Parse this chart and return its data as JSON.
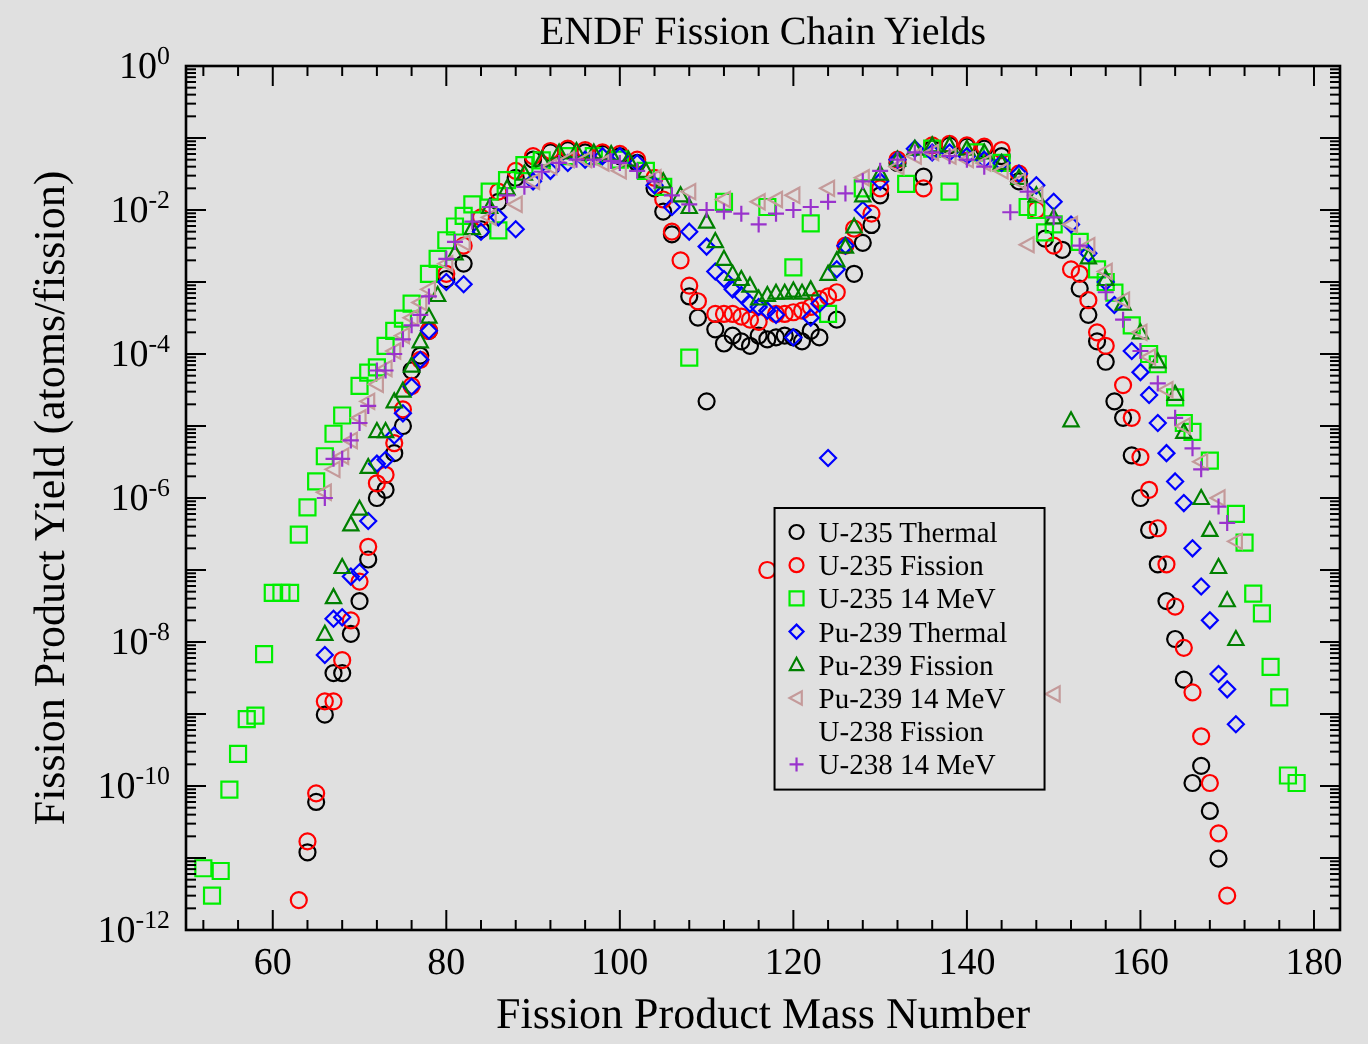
{
  "chart_data": {
    "type": "scatter",
    "title": "ENDF Fission Chain Yields",
    "xlabel": "Fission Product Mass Number",
    "ylabel": "Fission Product Yield (atoms/fission)",
    "log": "y",
    "legend": "bottom",
    "xlim": [
      50,
      183
    ],
    "ylim": [
      1e-12,
      1
    ],
    "xticks": [
      60,
      80,
      100,
      120,
      140,
      160,
      180
    ],
    "yticks": [
      {
        "value": 1e-12,
        "label": "10$^{-12}$"
      },
      {
        "value": 1e-11,
        "label": null
      },
      {
        "value": 1e-10,
        "label": "10$^{-10}$"
      },
      {
        "value": 1e-09,
        "label": null
      },
      {
        "value": 1e-08,
        "label": "10$^{-8}$"
      },
      {
        "value": 1e-07,
        "label": null
      },
      {
        "value": 1e-06,
        "label": "10$^{-6}$"
      },
      {
        "value": 1e-05,
        "label": null
      },
      {
        "value": 0.0001,
        "label": "10$^{-4}$"
      },
      {
        "value": 0.001,
        "label": null
      },
      {
        "value": 0.01,
        "label": "10$^{-2}$"
      },
      {
        "value": 0.1,
        "label": null
      },
      {
        "value": 1,
        "label": "10$^{0}$"
      }
    ],
    "series": [
      {
        "name": "U-235 Thermal",
        "color": "#000000",
        "marker": "circle",
        "x": [
          64,
          65,
          66,
          67,
          68,
          69,
          70,
          71,
          72,
          73,
          74,
          75,
          76,
          77,
          78,
          80,
          82,
          84,
          86,
          88,
          90,
          92,
          94,
          96,
          98,
          100,
          102,
          104,
          105,
          106,
          108,
          109,
          110,
          111,
          112,
          113,
          114,
          115,
          116,
          117,
          118,
          119,
          120,
          121,
          122,
          123,
          125,
          127,
          128,
          129,
          130,
          132,
          135,
          136,
          138,
          140,
          142,
          144,
          146,
          149,
          151,
          153,
          154,
          155,
          156,
          157,
          158,
          159,
          160,
          161,
          162,
          163,
          164,
          165,
          166,
          167,
          168,
          169
        ],
        "values": [
          1.2e-11,
          6e-11,
          9.8e-10,
          3.7e-09,
          3.7e-09,
          1.3e-08,
          3.7e-08,
          1.4e-07,
          1e-06,
          1.3e-06,
          4.2e-06,
          1e-05,
          5.9e-05,
          9.5e-05,
          0.00021,
          0.0011,
          0.0018,
          0.0054,
          0.013,
          0.028,
          0.05,
          0.063,
          0.068,
          0.063,
          0.06,
          0.056,
          0.045,
          0.02,
          0.0095,
          0.0046,
          0.00063,
          0.00032,
          2.2e-05,
          0.00022,
          0.00014,
          0.00018,
          0.00015,
          0.00013,
          0.00018,
          0.00016,
          0.00017,
          0.00018,
          0.00017,
          0.00015,
          0.00021,
          0.00017,
          0.0003,
          0.0013,
          0.0035,
          0.0062,
          0.016,
          0.045,
          0.029,
          0.071,
          0.079,
          0.076,
          0.071,
          0.056,
          0.025,
          0.004,
          0.0028,
          0.00081,
          0.00035,
          0.00015,
          7.8e-05,
          2.2e-05,
          1.3e-05,
          3.9e-06,
          1e-06,
          3.6e-07,
          1.2e-07,
          3.7e-08,
          1.1e-08,
          3e-09,
          1.1e-10,
          1.9e-10,
          4.5e-11,
          9.8e-12
        ]
      },
      {
        "name": "U-235 Fission",
        "color": "#ff0000",
        "marker": "circle",
        "x": [
          63,
          64,
          65,
          66,
          67,
          68,
          69,
          70,
          71,
          72,
          73,
          74,
          75,
          76,
          77,
          78,
          80,
          82,
          84,
          86,
          88,
          90,
          92,
          94,
          96,
          98,
          100,
          102,
          104,
          105,
          106,
          107,
          108,
          109,
          111,
          112,
          113,
          114,
          115,
          116,
          117,
          118,
          119,
          120,
          121,
          122,
          123,
          124,
          125,
          126,
          127,
          129,
          130,
          132,
          135,
          136,
          138,
          140,
          142,
          144,
          146,
          148,
          150,
          152,
          153,
          154,
          155,
          156,
          158,
          159,
          160,
          161,
          162,
          163,
          164,
          165,
          166,
          167,
          168,
          169,
          170
        ],
        "values": [
          2.6e-12,
          1.7e-11,
          7.9e-11,
          1.5e-09,
          1.5e-09,
          5.6e-09,
          2e-08,
          6.9e-08,
          2.1e-07,
          1.6e-06,
          2.1e-06,
          5.8e-06,
          1.7e-05,
          3.6e-05,
          8.3e-05,
          0.00021,
          0.0013,
          0.0032,
          0.0079,
          0.018,
          0.035,
          0.056,
          0.066,
          0.071,
          0.068,
          0.063,
          0.06,
          0.05,
          0.028,
          0.014,
          0.005,
          0.002,
          0.00089,
          0.00054,
          0.00036,
          0.00036,
          0.00036,
          0.00033,
          0.0003,
          0.00028,
          1e-07,
          0.00036,
          0.00036,
          0.00038,
          0.0004,
          0.00045,
          0.00058,
          0.00063,
          0.00072,
          0.0032,
          0.0055,
          0.0089,
          0.02,
          0.05,
          0.02,
          0.079,
          0.083,
          0.079,
          0.076,
          0.068,
          0.032,
          0.01,
          0.0032,
          0.0015,
          0.0013,
          0.00056,
          0.0002,
          0.00013,
          3.7e-05,
          1.3e-05,
          3.7e-06,
          1.3e-06,
          3.8e-07,
          1.2e-07,
          3.1e-08,
          8.3e-09,
          2e-09,
          4.9e-10,
          1.1e-10,
          2.2e-11,
          3e-12
        ]
      },
      {
        "name": "U-235 14 MeV",
        "color": "#00ee00",
        "marker": "square",
        "x": [
          52,
          53,
          54,
          55,
          56,
          57,
          58,
          59,
          60,
          61,
          62,
          63,
          64,
          65,
          66,
          67,
          68,
          70,
          71,
          72,
          73,
          74,
          75,
          76,
          78,
          79,
          80,
          81,
          82,
          83,
          85,
          86,
          87,
          89,
          91,
          94,
          97,
          100,
          103,
          105,
          108,
          112,
          117,
          120,
          122,
          124,
          128,
          133,
          136,
          138,
          141,
          144,
          147,
          148,
          149,
          150,
          153,
          155,
          156,
          157,
          159,
          161,
          162,
          164,
          165,
          166,
          168,
          171,
          172,
          173,
          174,
          175,
          176,
          177,
          178
        ],
        "values": [
          7.2e-12,
          3e-12,
          6.6e-12,
          8.9e-11,
          2.8e-10,
          8.5e-10,
          9.5e-10,
          6.8e-09,
          4.8e-08,
          4.8e-08,
          4.8e-08,
          3.1e-07,
          7.4e-07,
          1.7e-06,
          3.8e-06,
          7.8e-06,
          1.4e-05,
          3.6e-05,
          5.5e-05,
          6.5e-05,
          0.00013,
          0.00021,
          0.00031,
          0.0005,
          0.0013,
          0.0021,
          0.0038,
          0.0059,
          0.0083,
          0.012,
          0.018,
          0.0052,
          0.026,
          0.042,
          0.049,
          0.056,
          0.056,
          0.05,
          0.035,
          0.021,
          8.9e-05,
          0.013,
          0.011,
          0.0016,
          0.0065,
          0.00036,
          0.02,
          0.023,
          0.071,
          0.018,
          0.063,
          0.045,
          0.011,
          0.01,
          0.0049,
          0.0063,
          0.0036,
          0.0015,
          0.001,
          0.00071,
          0.00025,
          0.0001,
          7.2e-05,
          2.5e-05,
          1.1e-05,
          8.3e-06,
          3.3e-06,
          6e-07,
          2.4e-07,
          4.7e-08,
          2.5e-08,
          4.5e-09,
          1.7e-09,
          1.4e-10,
          1.1e-10
        ]
      },
      {
        "name": "Pu-239 Thermal",
        "color": "#0000ff",
        "marker": "diamond",
        "x": [
          66,
          67,
          68,
          69,
          70,
          71,
          72,
          73,
          74,
          75,
          76,
          77,
          78,
          80,
          82,
          84,
          86,
          88,
          90,
          92,
          94,
          96,
          98,
          100,
          102,
          104,
          106,
          108,
          110,
          111,
          112,
          113,
          114,
          115,
          116,
          117,
          118,
          120,
          122,
          123,
          124,
          125,
          126,
          128,
          130,
          132,
          134,
          136,
          138,
          140,
          142,
          144,
          146,
          148,
          150,
          152,
          154,
          156,
          157,
          159,
          160,
          161,
          162,
          163,
          164,
          165,
          166,
          167,
          168,
          169,
          170,
          171
        ],
        "values": [
          6.6e-09,
          2.1e-08,
          2.2e-08,
          8.1e-08,
          9.3e-08,
          4.8e-07,
          3e-06,
          3.4e-06,
          7.4e-06,
          1.5e-05,
          3.5e-05,
          8.3e-05,
          0.00021,
          0.001,
          0.00093,
          0.005,
          0.0079,
          0.0054,
          0.025,
          0.035,
          0.045,
          0.05,
          0.056,
          0.056,
          0.045,
          0.022,
          0.011,
          0.005,
          0.0031,
          0.0014,
          0.0011,
          0.00079,
          0.00066,
          0.0005,
          0.00045,
          0.0004,
          0.00035,
          0.00017,
          0.00032,
          0.0005,
          3.6e-06,
          0.0015,
          0.0032,
          0.01,
          0.025,
          0.05,
          0.071,
          0.063,
          0.063,
          0.056,
          0.05,
          0.045,
          0.032,
          0.022,
          0.013,
          0.0063,
          0.0025,
          0.001,
          0.00048,
          0.00011,
          5.6e-05,
          2.7e-05,
          1.1e-05,
          4.2e-06,
          1.7e-06,
          8.5e-07,
          2e-07,
          5.9e-08,
          2e-08,
          3.6e-09,
          2.2e-09,
          7.2e-10
        ]
      },
      {
        "name": "Pu-239 Fission",
        "color": "#008000",
        "marker": "triangle",
        "x": [
          66,
          67,
          68,
          69,
          70,
          71,
          72,
          73,
          74,
          75,
          76,
          77,
          78,
          79,
          81,
          83,
          85,
          87,
          89,
          91,
          93,
          95,
          97,
          99,
          101,
          103,
          105,
          107,
          108,
          110,
          111,
          112,
          113,
          114,
          115,
          116,
          117,
          118,
          119,
          120,
          121,
          122,
          124,
          125,
          126,
          127,
          128,
          130,
          132,
          134,
          136,
          138,
          140,
          142,
          144,
          146,
          148,
          150,
          152,
          154,
          156,
          158,
          160,
          162,
          164,
          165,
          167,
          168,
          169,
          170,
          171
        ],
        "values": [
          1.3e-08,
          4.2e-08,
          1.1e-07,
          4.3e-07,
          7.1e-07,
          2.7e-06,
          8.5e-06,
          8.5e-06,
          2.2e-05,
          3.1e-05,
          6.9e-05,
          0.00015,
          0.00033,
          0.00066,
          0.0025,
          0.0056,
          0.011,
          0.02,
          0.032,
          0.05,
          0.063,
          0.066,
          0.063,
          0.06,
          0.05,
          0.035,
          0.025,
          0.016,
          0.011,
          0.0069,
          0.0037,
          0.0021,
          0.0013,
          0.0011,
          0.00089,
          0.00059,
          0.00066,
          0.00071,
          0.00071,
          0.00076,
          0.00071,
          0.00079,
          0.0013,
          0.002,
          0.0031,
          0.0059,
          0.016,
          0.032,
          0.05,
          0.071,
          0.079,
          0.079,
          0.071,
          0.063,
          0.045,
          0.028,
          0.016,
          0.0079,
          1.2e-05,
          0.0022,
          0.0011,
          0.0005,
          0.0002,
          7.9e-05,
          2.8e-05,
          8.3e-06,
          1e-06,
          3.6e-07,
          1.1e-07,
          3.8e-08,
          1.1e-08
        ]
      },
      {
        "name": "Pu-239 14 MeV",
        "color": "#c49a9a",
        "marker": "triangle-left",
        "x": [
          66,
          67,
          68,
          69,
          70,
          71,
          72,
          73,
          74,
          75,
          76,
          77,
          78,
          80,
          82,
          85,
          88,
          90,
          92,
          94,
          96,
          98,
          100,
          104,
          108,
          112,
          116,
          118,
          120,
          124,
          128,
          132,
          134,
          136,
          138,
          140,
          142,
          144,
          146,
          147,
          148,
          150,
          152,
          154,
          156,
          158,
          160,
          161,
          163,
          165,
          167,
          169,
          171
        ],
        "values": [
          1.2e-06,
          2.5e-06,
          3.8e-06,
          6.3e-06,
          1.3e-05,
          2.2e-05,
          3.8e-05,
          6.3e-05,
          0.00011,
          0.00018,
          0.00032,
          0.00052,
          0.00079,
          0.0018,
          0.0035,
          0.0079,
          0.012,
          0.025,
          0.04,
          0.05,
          0.05,
          0.045,
          0.035,
          0.028,
          0.018,
          0.014,
          0.013,
          0.014,
          0.016,
          0.02,
          0.028,
          0.04,
          0.056,
          0.063,
          0.056,
          0.05,
          0.045,
          0.035,
          0.025,
          0.0033,
          0.016,
          1.9e-09,
          0.0063,
          0.0032,
          0.0014,
          0.00056,
          0.0002,
          9.1e-05,
          3.2e-05,
          1e-05,
          3.2e-06,
          1e-06,
          2.5e-07
        ]
      },
      {
        "name": "U-238 Fission",
        "marker": "none"
      },
      {
        "name": "U-238 14 MeV",
        "color": "#9933cc",
        "marker": "cross",
        "x": [
          66,
          67,
          68,
          69,
          70,
          71,
          72,
          73,
          74,
          75,
          76,
          77,
          78,
          80,
          81,
          83,
          85,
          87,
          89,
          91,
          93,
          95,
          97,
          99,
          100,
          102,
          104,
          106,
          108,
          110,
          112,
          114,
          116,
          118,
          120,
          122,
          124,
          126,
          128,
          130,
          132,
          134,
          136,
          138,
          140,
          142,
          145,
          147,
          150,
          153,
          156,
          158,
          160,
          162,
          164,
          166,
          167,
          169,
          170
        ],
        "values": [
          1e-06,
          3.5e-06,
          3.5e-06,
          6.3e-06,
          1.1e-05,
          1.9e-05,
          5.9e-05,
          5.9e-05,
          0.0001,
          0.00016,
          0.00025,
          0.00035,
          0.00063,
          0.0021,
          0.0036,
          0.0069,
          0.011,
          0.016,
          0.021,
          0.034,
          0.045,
          0.05,
          0.05,
          0.048,
          0.045,
          0.035,
          0.025,
          0.016,
          0.012,
          0.01,
          0.0095,
          0.0089,
          0.0063,
          0.0089,
          0.01,
          0.011,
          0.013,
          0.017,
          0.025,
          0.035,
          0.05,
          0.063,
          0.063,
          0.056,
          0.05,
          0.04,
          0.0093,
          0.018,
          0.0079,
          0.0032,
          0.00072,
          0.0003,
          0.00011,
          3.9e-05,
          1.3e-05,
          4.9e-06,
          2.5e-06,
          7.6e-07,
          4.5e-07
        ]
      }
    ]
  }
}
